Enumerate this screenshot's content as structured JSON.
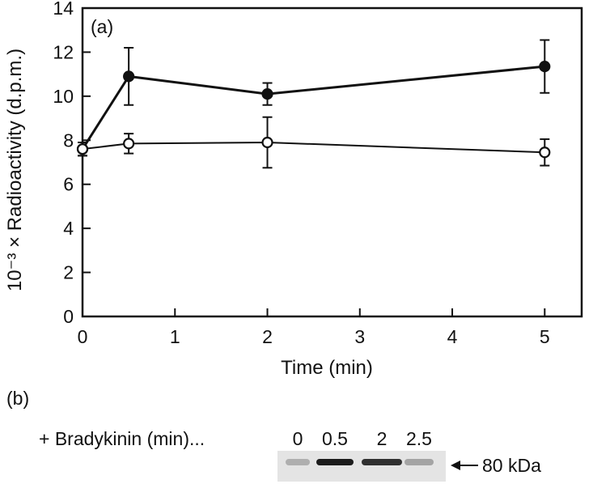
{
  "chart_data": {
    "type": "line",
    "panel_label": "(a)",
    "xlabel": "Time (min)",
    "ylabel": "10⁻³ × Radioactivity (d.p.m.)",
    "xlim": [
      0,
      5.4
    ],
    "ylim": [
      0,
      14
    ],
    "x_ticks": [
      0,
      1,
      2,
      3,
      4,
      5
    ],
    "y_ticks": [
      0,
      2,
      4,
      6,
      8,
      10,
      12,
      14
    ],
    "grid": false,
    "series": [
      {
        "marker": "filled-circle",
        "x": [
          0,
          0.5,
          2,
          5
        ],
        "y": [
          7.6,
          10.9,
          10.1,
          11.35
        ],
        "error": [
          0.3,
          1.3,
          0.5,
          1.2
        ]
      },
      {
        "marker": "open-circle",
        "x": [
          0,
          0.5,
          2,
          5
        ],
        "y": [
          7.6,
          7.85,
          7.9,
          7.45
        ],
        "error": [
          0.3,
          0.45,
          1.15,
          0.6
        ]
      }
    ]
  },
  "blot": {
    "panel_label": "(b)",
    "treatment_label": "+ Bradykinin (min)...",
    "lanes": [
      "0",
      "0.5",
      "2",
      "2.5"
    ],
    "band_intensity": [
      0.25,
      0.95,
      0.85,
      0.3
    ],
    "marker_label": "80 kDa"
  }
}
